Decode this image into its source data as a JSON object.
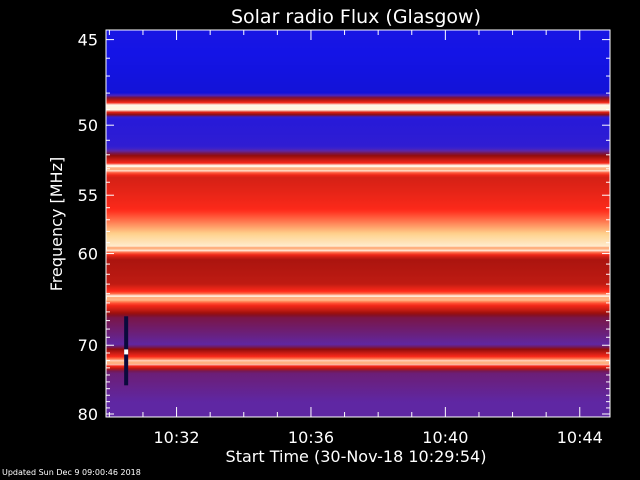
{
  "chart_data": {
    "type": "heatmap",
    "title": "Solar radio Flux (Glasgow)",
    "xlabel": "Start Time (30-Nov-18 10:29:54)",
    "ylabel": "Frequency [MHz]",
    "x_range_minutes": [
      "10:29:54",
      "10:44:54"
    ],
    "x_ticks": [
      "10:32",
      "10:36",
      "10:40",
      "10:44"
    ],
    "y_range_mhz": [
      44.5,
      80.5
    ],
    "y_ticks": [
      45,
      50,
      55,
      60,
      70,
      80
    ],
    "y_scale": "reciprocal",
    "colormap": [
      "#0a0a8c",
      "#1414e6",
      "#5a2ab4",
      "#8c0a0a",
      "#c81e14",
      "#ff2a1a",
      "#ffd28c",
      "#ffffff"
    ],
    "intensity_profile": [
      {
        "mhz": 45,
        "level": 0.15
      },
      {
        "mhz": 48,
        "level": 0.12
      },
      {
        "mhz": 48.9,
        "level": 1.0
      },
      {
        "mhz": 49.5,
        "level": 0.18
      },
      {
        "mhz": 51.5,
        "level": 0.2
      },
      {
        "mhz": 52.3,
        "level": 0.55
      },
      {
        "mhz": 53.0,
        "level": 0.9
      },
      {
        "mhz": 53.6,
        "level": 0.6
      },
      {
        "mhz": 56,
        "level": 0.7
      },
      {
        "mhz": 59.5,
        "level": 0.95
      },
      {
        "mhz": 60.5,
        "level": 0.5
      },
      {
        "mhz": 63,
        "level": 0.55
      },
      {
        "mhz": 64.5,
        "level": 0.88
      },
      {
        "mhz": 66.5,
        "level": 0.38
      },
      {
        "mhz": 70,
        "level": 0.3
      },
      {
        "mhz": 72.3,
        "level": 0.92
      },
      {
        "mhz": 73.5,
        "level": 0.34
      },
      {
        "mhz": 78,
        "level": 0.3
      },
      {
        "mhz": 80,
        "level": 0.3
      }
    ],
    "bright_lines_mhz": [
      48.9,
      53.0,
      59.5,
      64.5,
      72.3
    ],
    "burst": {
      "time": "10:30:30",
      "mhz_range": [
        66.5,
        75.5
      ]
    }
  },
  "footer": {
    "updated": "Updated Sun Dec  9 09:00:46 2018"
  }
}
